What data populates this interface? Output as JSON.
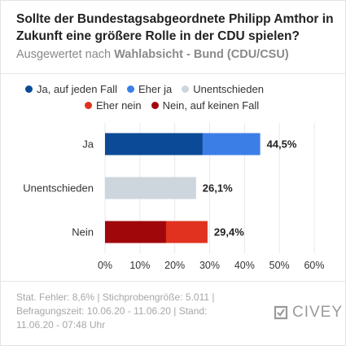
{
  "header": {
    "title": "Sollte der Bundestagsabgeordnete Philipp Amthor in Zukunft eine größere Rolle in der CDU spielen?",
    "subtitle_prefix": "Ausgewertet nach",
    "subtitle_bold": "Wahlabsicht - Bund (CDU/CSU)"
  },
  "legend": [
    {
      "label": "Ja, auf jeden Fall",
      "color": "#0b4a96"
    },
    {
      "label": "Eher ja",
      "color": "#3b7fe6"
    },
    {
      "label": "Unentschieden",
      "color": "#cdd5dd"
    },
    {
      "label": "Eher nein",
      "color": "#e0321f"
    },
    {
      "label": "Nein, auf keinen Fall",
      "color": "#a0070b"
    }
  ],
  "chart_data": {
    "type": "bar",
    "orientation": "horizontal",
    "stacked": true,
    "categories": [
      "Ja",
      "Unentschieden",
      "Nein"
    ],
    "series": [
      {
        "name": "Ja, auf jeden Fall",
        "values": [
          28,
          0,
          0
        ],
        "color": "#0b4a96"
      },
      {
        "name": "Eher ja",
        "values": [
          16.5,
          0,
          0
        ],
        "color": "#3b7fe6"
      },
      {
        "name": "Unentschieden",
        "values": [
          0,
          26.1,
          0
        ],
        "color": "#cdd5dd"
      },
      {
        "name": "Nein, auf keinen Fall",
        "values": [
          0,
          0,
          17.5
        ],
        "color": "#a0070b"
      },
      {
        "name": "Eher nein",
        "values": [
          0,
          0,
          11.9
        ],
        "color": "#e0321f"
      }
    ],
    "totals": [
      "44,5%",
      "26,1%",
      "29,4%"
    ],
    "xlim": [
      0,
      60
    ],
    "xticks": [
      0,
      10,
      20,
      30,
      40,
      50,
      60
    ],
    "xtick_labels": [
      "0%",
      "10%",
      "20%",
      "30%",
      "40%",
      "50%",
      "60%"
    ],
    "grid": true
  },
  "footer": {
    "line1": "Stat. Fehler: 8,6% | Stichprobengröße: 5.011 |",
    "line2": "Befragungszeit: 10.06.20 - 11.06.20 | Stand:",
    "line3": "11.06.20 - 07:48 Uhr"
  },
  "logo": {
    "text": "CIVEY"
  }
}
